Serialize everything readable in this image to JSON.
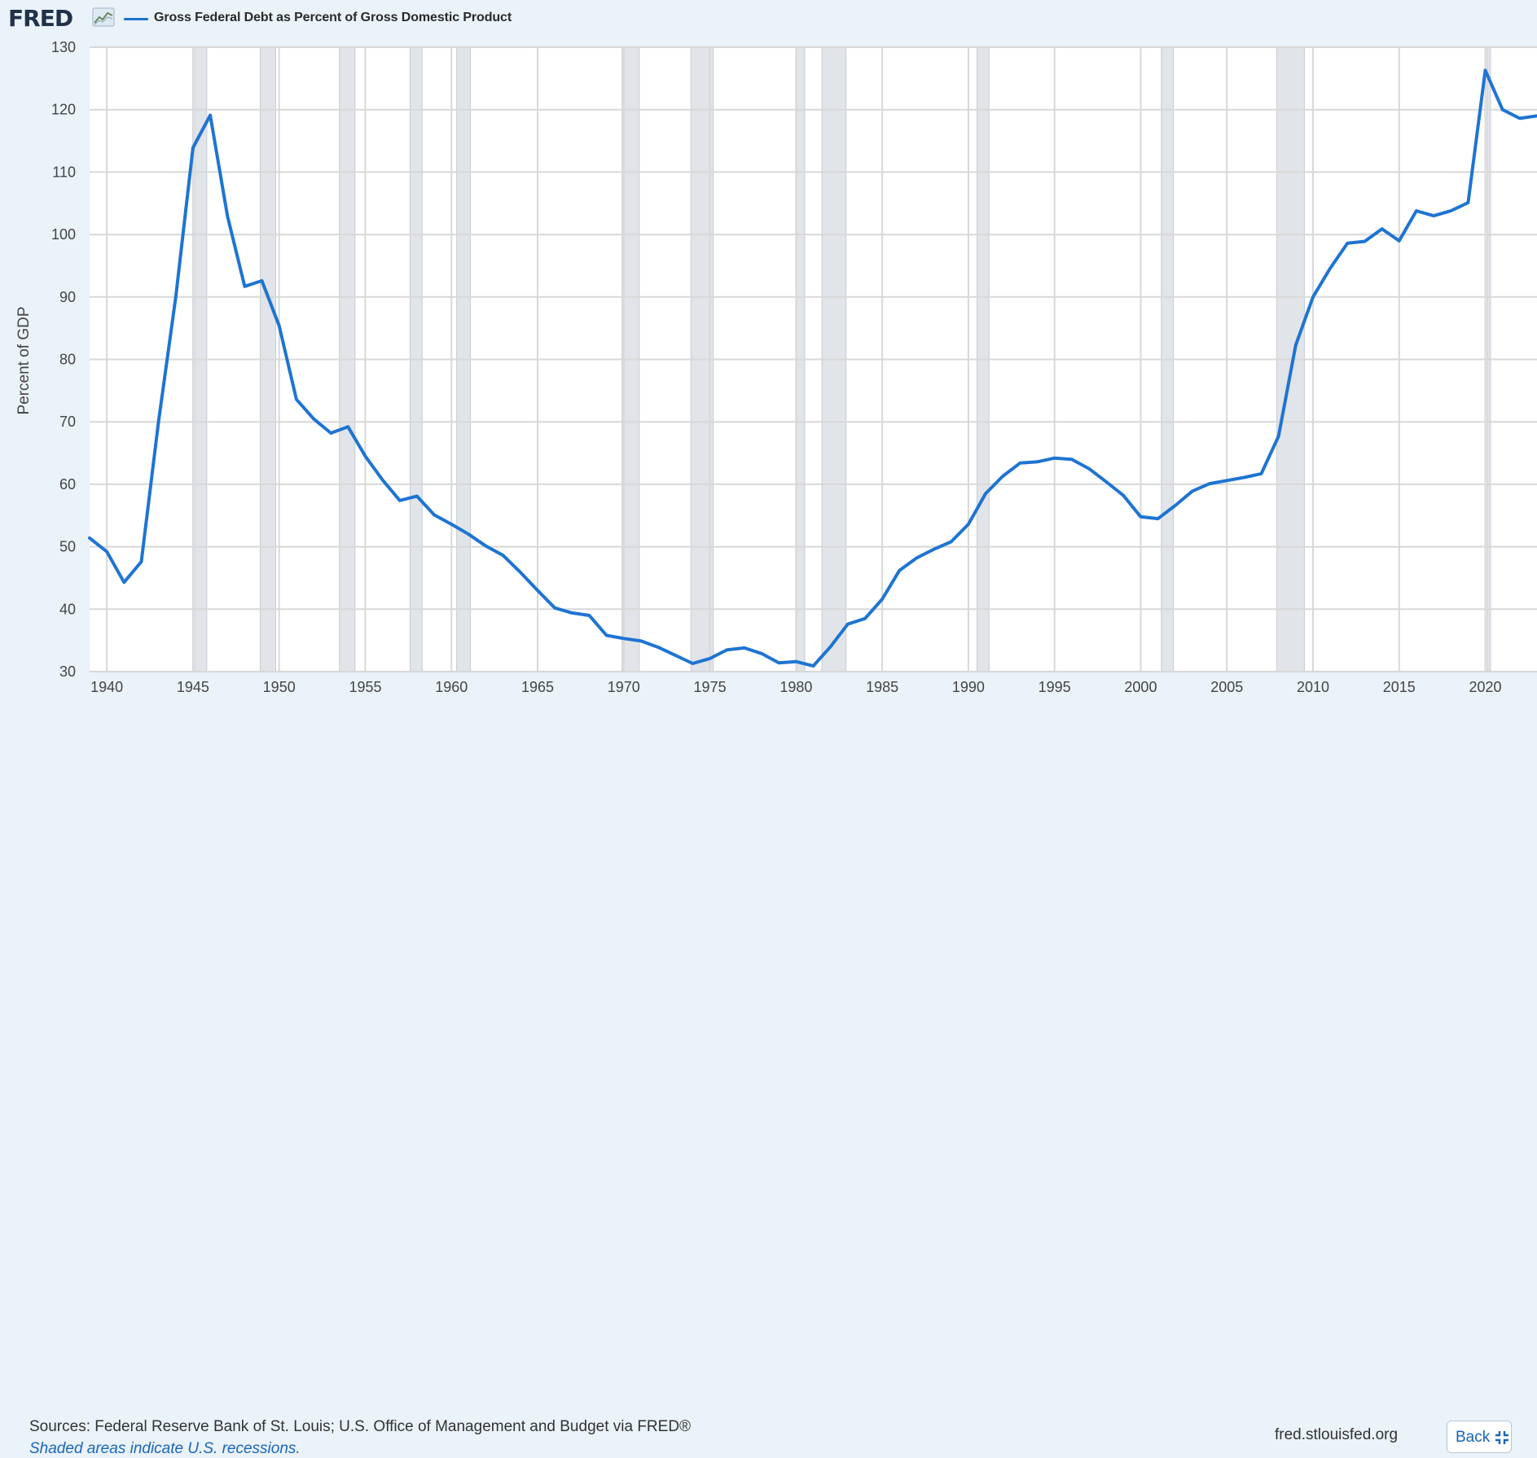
{
  "header": {
    "logo_text": "FRED",
    "logo_icon": "chart-line-icon",
    "legend_label": "Gross Federal Debt as Percent of Gross Domestic Product",
    "legend_color": "#1e74d2"
  },
  "footer": {
    "sources": "Sources: Federal Reserve Bank of St. Louis; U.S. Office of Management and Budget via FRED®",
    "note": "Shaded areas indicate U.S. recessions.",
    "site": "fred.stlouisfed.org",
    "back_label": "Back",
    "back_icon": "collapse-icon"
  },
  "chart_data": {
    "type": "line",
    "ylabel": "Percent of GDP",
    "ylim": [
      30,
      130
    ],
    "xlim": [
      1939,
      2023
    ],
    "yticks": [
      30,
      40,
      50,
      60,
      70,
      80,
      90,
      100,
      110,
      120,
      130
    ],
    "xticks": [
      1940,
      1945,
      1950,
      1955,
      1960,
      1965,
      1970,
      1975,
      1980,
      1985,
      1990,
      1995,
      2000,
      2005,
      2010,
      2015,
      2020
    ],
    "grid": true,
    "line_color": "#1e74d2",
    "recession_color": "#e1e4e8",
    "recessions": [
      [
        1945.1,
        1945.8
      ],
      [
        1948.9,
        1949.8
      ],
      [
        1953.5,
        1954.4
      ],
      [
        1957.6,
        1958.3
      ],
      [
        1960.3,
        1961.1
      ],
      [
        1969.9,
        1970.9
      ],
      [
        1973.9,
        1975.2
      ],
      [
        1980.0,
        1980.5
      ],
      [
        1981.5,
        1982.9
      ],
      [
        1990.5,
        1991.2
      ],
      [
        2001.2,
        2001.9
      ],
      [
        2007.9,
        2009.5
      ],
      [
        2020.1,
        2020.3
      ]
    ],
    "series": [
      {
        "x": [
          1939,
          1940,
          1941,
          1942,
          1943,
          1944,
          1945,
          1946,
          1947,
          1948,
          1949,
          1950,
          1951,
          1952,
          1953,
          1954,
          1955,
          1956,
          1957,
          1958,
          1959,
          1960,
          1961,
          1962,
          1963,
          1964,
          1965,
          1966,
          1967,
          1968,
          1969,
          1970,
          1971,
          1972,
          1973,
          1974,
          1975,
          1976,
          1977,
          1978,
          1979,
          1980,
          1981,
          1982,
          1983,
          1984,
          1985,
          1986,
          1987,
          1988,
          1989,
          1990,
          1991,
          1992,
          1993,
          1994,
          1995,
          1996,
          1997,
          1998,
          1999,
          2000,
          2001,
          2002,
          2003,
          2004,
          2005,
          2006,
          2007,
          2008,
          2009,
          2010,
          2011,
          2012,
          2013,
          2014,
          2015,
          2016,
          2017,
          2018,
          2019,
          2020,
          2021,
          2022,
          2023
        ],
        "values": [
          51.4,
          49.2,
          44.3,
          47.6,
          70.0,
          90.0,
          113.9,
          119.1,
          103.0,
          91.7,
          92.6,
          85.4,
          73.6,
          70.5,
          68.2,
          69.2,
          64.5,
          60.7,
          57.4,
          58.1,
          55.1,
          53.6,
          52.0,
          50.1,
          48.6,
          45.9,
          43.0,
          40.2,
          39.4,
          39.0,
          35.8,
          35.3,
          34.9,
          33.9,
          32.6,
          31.3,
          32.1,
          33.5,
          33.8,
          32.9,
          31.4,
          31.6,
          30.9,
          34.0,
          37.6,
          38.5,
          41.6,
          46.2,
          48.2,
          49.6,
          50.8,
          53.6,
          58.5,
          61.3,
          63.4,
          63.6,
          64.2,
          64.0,
          62.5,
          60.4,
          58.2,
          54.8,
          54.5,
          56.6,
          58.9,
          60.1,
          60.6,
          61.1,
          61.7,
          67.7,
          82.3,
          90.0,
          94.6,
          98.6,
          98.9,
          100.9,
          99.0,
          103.8,
          103.0,
          103.8,
          105.1,
          126.3,
          120.0,
          118.6,
          119.0
        ]
      }
    ]
  }
}
